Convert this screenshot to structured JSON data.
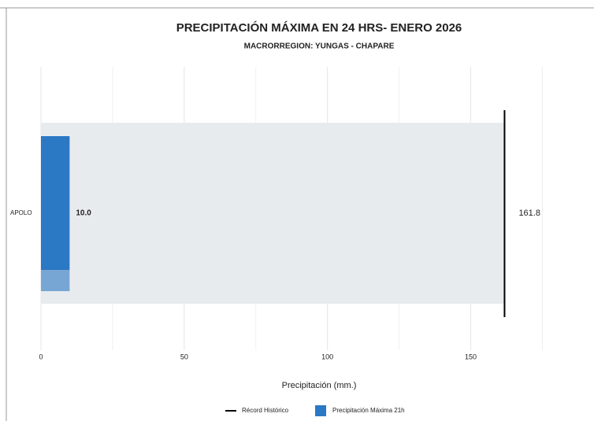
{
  "chart_data": {
    "type": "bar",
    "orientation": "horizontal",
    "title": "PRECIPITACIÓN MÁXIMA EN 24 HRS- ENERO 2026",
    "subtitle": "MACRORREGION: YUNGAS - CHAPARE",
    "x_label": "Precipitación (mm.)",
    "categories": [
      "APOLO"
    ],
    "series": [
      {
        "name": "Precipitación Máxima 21h",
        "color": "#2b78c5",
        "values": [
          10.0
        ],
        "value_labels": [
          "10.0"
        ]
      }
    ],
    "record": {
      "name": "Récord Histórico",
      "color": "#000000",
      "values": [
        161.8
      ]
    },
    "xlim": [
      0,
      190
    ],
    "xticks": [
      0,
      50,
      100,
      150
    ],
    "minor_xticks": [
      25,
      75,
      125,
      175
    ],
    "grid": true,
    "legend": "bottom"
  }
}
